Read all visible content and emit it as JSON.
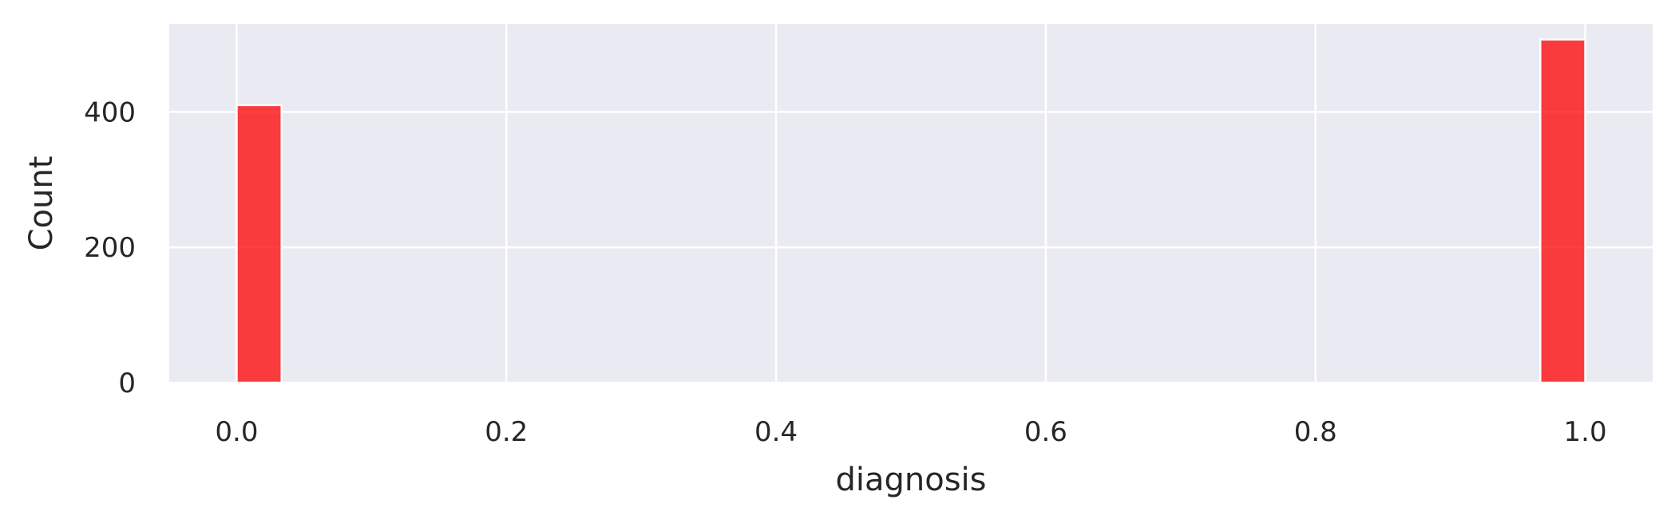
{
  "chart_data": {
    "type": "bar",
    "title": "",
    "xlabel": "diagnosis",
    "ylabel": "Count",
    "xlim": [
      -0.05,
      1.05
    ],
    "ylim": [
      0,
      530
    ],
    "xticks": [
      0.0,
      0.2,
      0.4,
      0.6,
      0.8,
      1.0
    ],
    "xtick_labels": [
      "0.0",
      "0.2",
      "0.4",
      "0.6",
      "0.8",
      "1.0"
    ],
    "yticks": [
      0,
      200,
      400
    ],
    "ytick_labels": [
      "0",
      "200",
      "400"
    ],
    "grid": true,
    "bars": [
      {
        "x_start": 0.0,
        "x_end": 0.0333,
        "count": 410
      },
      {
        "x_start": 0.9667,
        "x_end": 1.0,
        "count": 507
      }
    ],
    "colors": {
      "bar": "#ff0000",
      "plot_background": "#eaeaf2",
      "grid": "#ffffff"
    }
  }
}
